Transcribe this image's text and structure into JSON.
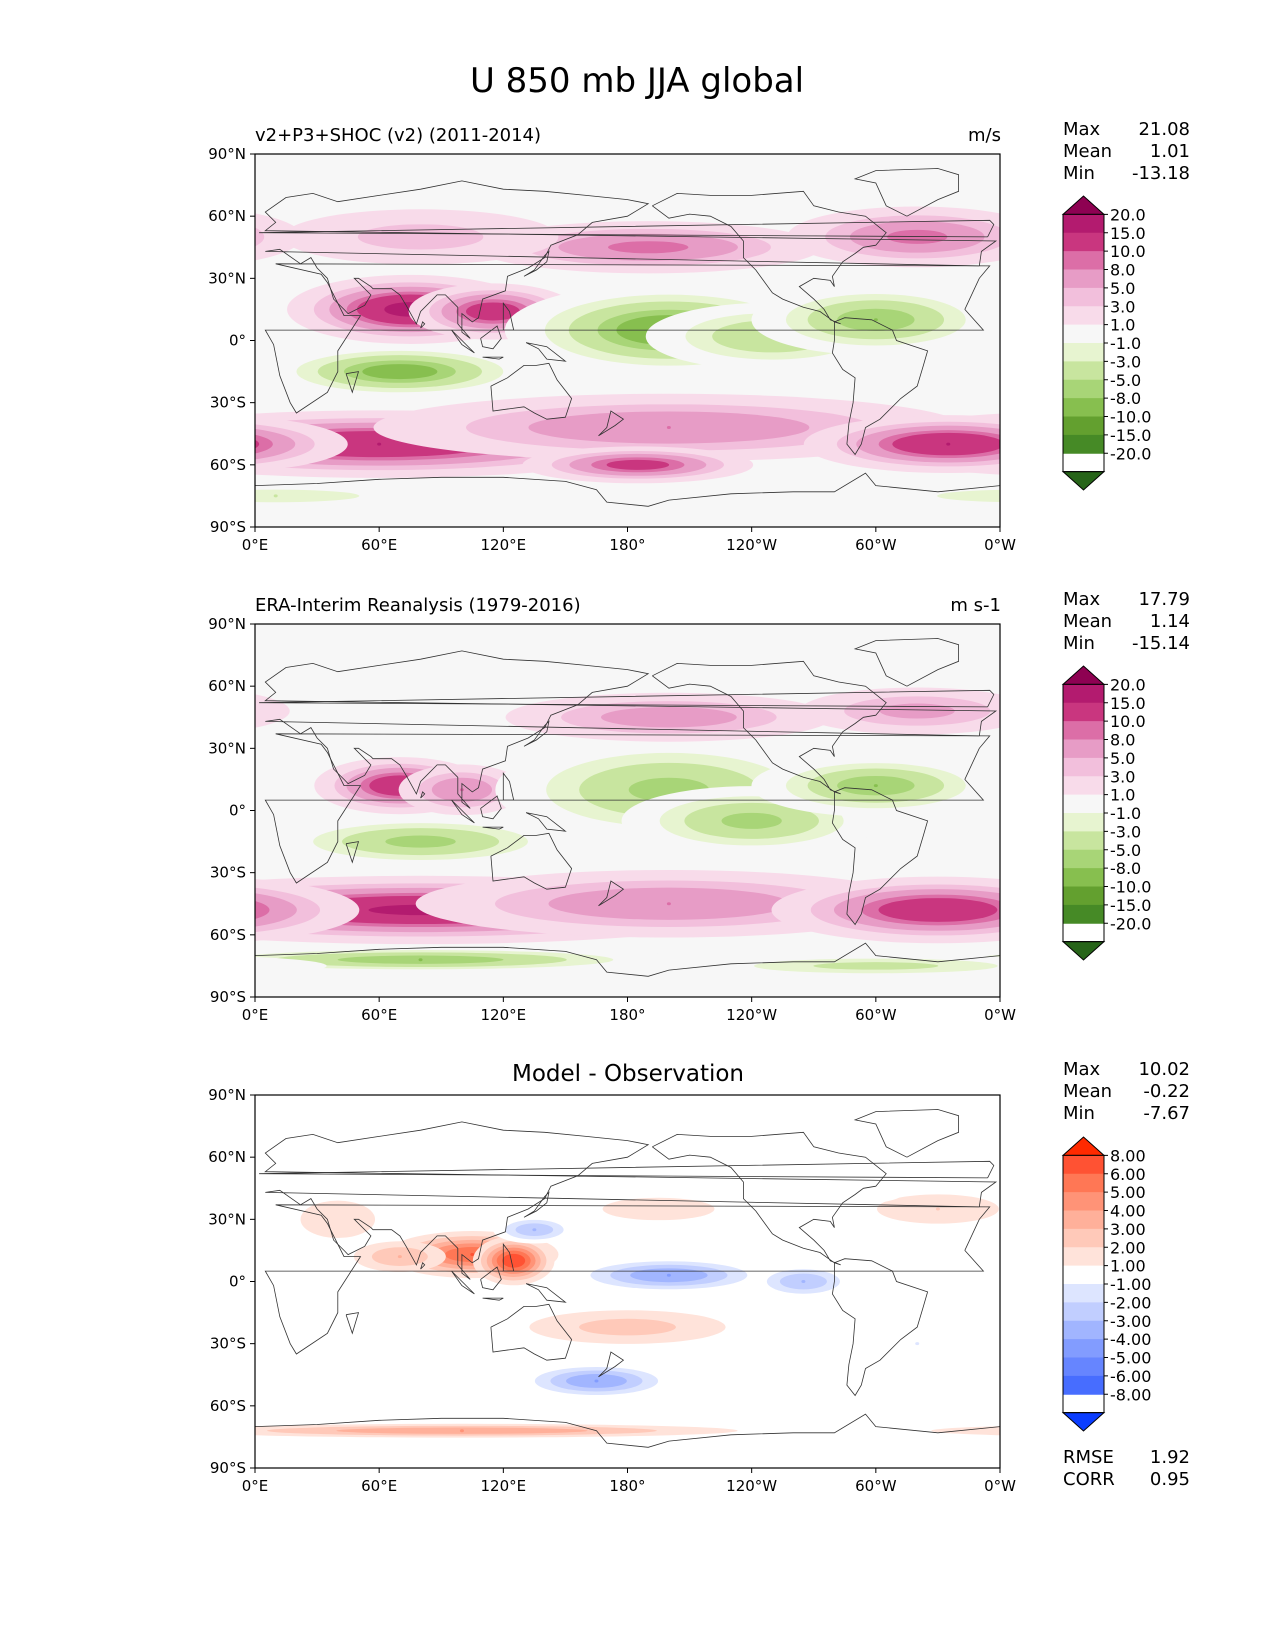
{
  "title": "U 850 mb JJA global",
  "chart_data": [
    {
      "type": "heatmap",
      "panel": "test",
      "title": "v2+P3+SHOC (v2) (2011-2014)",
      "units": "m/s",
      "stats": [
        {
          "label": "Max",
          "value": "21.08"
        },
        {
          "label": "Mean",
          "value": "1.01"
        },
        {
          "label": "Min",
          "value": "-13.18"
        }
      ],
      "x_ticks": [
        "0°E",
        "60°E",
        "120°E",
        "180°",
        "120°W",
        "60°W",
        "0°W"
      ],
      "y_ticks": [
        "90°N",
        "60°N",
        "30°N",
        "0°",
        "30°S",
        "60°S",
        "90°S"
      ],
      "xlim": [
        0,
        360
      ],
      "ylim": [
        -90,
        90
      ],
      "colorbar": {
        "labels": [
          "20.0",
          "15.0",
          "10.0",
          "8.0",
          "5.0",
          "3.0",
          "1.0",
          "-1.0",
          "-3.0",
          "-5.0",
          "-8.0",
          "-10.0",
          "-15.0",
          "-20.0"
        ],
        "colors": [
          "#8e0152",
          "#b31b6f",
          "#c9367f",
          "#dc6ea7",
          "#e79cc6",
          "#f2bfdc",
          "#f8dbea",
          "#f7f7f7",
          "#e7f4d0",
          "#c8e59f",
          "#a8d577",
          "#87bf4f",
          "#63a02f",
          "#468a26",
          "#276419"
        ]
      },
      "features": [
        {
          "lon": 75,
          "lat": 15,
          "value": 17,
          "sx": 25,
          "sy": 7
        },
        {
          "lon": 115,
          "lat": 14,
          "value": 13,
          "sx": 18,
          "sy": 6
        },
        {
          "lon": 70,
          "lat": -15,
          "value": -12,
          "sx": 30,
          "sy": 6
        },
        {
          "lon": 200,
          "lat": 5,
          "value": -13,
          "sx": 35,
          "sy": 10
        },
        {
          "lon": 250,
          "lat": 2,
          "value": -8,
          "sx": 30,
          "sy": 8
        },
        {
          "lon": 300,
          "lat": 10,
          "value": -10,
          "sx": 28,
          "sy": 8
        },
        {
          "lon": 60,
          "lat": -50,
          "value": 15,
          "sx": 60,
          "sy": 7
        },
        {
          "lon": 200,
          "lat": -42,
          "value": 8,
          "sx": 70,
          "sy": 8
        },
        {
          "lon": 185,
          "lat": -60,
          "value": 12,
          "sx": 25,
          "sy": 4
        },
        {
          "lon": 335,
          "lat": -50,
          "value": 15,
          "sx": 30,
          "sy": 6
        },
        {
          "lon": 190,
          "lat": 45,
          "value": 9,
          "sx": 40,
          "sy": 6
        },
        {
          "lon": 320,
          "lat": 50,
          "value": 9,
          "sx": 30,
          "sy": 7
        },
        {
          "lon": 80,
          "lat": 50,
          "value": 4,
          "sx": 40,
          "sy": 8
        },
        {
          "lon": 10,
          "lat": -75,
          "value": -5,
          "sx": 40,
          "sy": 3
        }
      ]
    },
    {
      "type": "heatmap",
      "panel": "reference",
      "title": "ERA-Interim Reanalysis (1979-2016)",
      "units": "m s-1",
      "stats": [
        {
          "label": "Max",
          "value": "17.79"
        },
        {
          "label": "Mean",
          "value": "1.14"
        },
        {
          "label": "Min",
          "value": "-15.14"
        }
      ],
      "x_ticks": [
        "0°E",
        "60°E",
        "120°E",
        "180°",
        "120°W",
        "60°W",
        "0°W"
      ],
      "y_ticks": [
        "90°N",
        "60°N",
        "30°N",
        "0°",
        "30°S",
        "60°S",
        "90°S"
      ],
      "xlim": [
        0,
        360
      ],
      "ylim": [
        -90,
        90
      ],
      "colorbar": {
        "labels": [
          "20.0",
          "15.0",
          "10.0",
          "8.0",
          "5.0",
          "3.0",
          "1.0",
          "-1.0",
          "-3.0",
          "-5.0",
          "-8.0",
          "-10.0",
          "-15.0",
          "-20.0"
        ],
        "colors": [
          "#8e0152",
          "#b31b6f",
          "#c9367f",
          "#dc6ea7",
          "#e79cc6",
          "#f2bfdc",
          "#f8dbea",
          "#f7f7f7",
          "#e7f4d0",
          "#c8e59f",
          "#a8d577",
          "#87bf4f",
          "#63a02f",
          "#468a26",
          "#276419"
        ]
      },
      "features": [
        {
          "lon": 70,
          "lat": 12,
          "value": 14,
          "sx": 18,
          "sy": 6
        },
        {
          "lon": 100,
          "lat": 10,
          "value": 8,
          "sx": 15,
          "sy": 6
        },
        {
          "lon": 80,
          "lat": -15,
          "value": -9,
          "sx": 35,
          "sy": 6
        },
        {
          "lon": 200,
          "lat": 10,
          "value": -9,
          "sx": 40,
          "sy": 12
        },
        {
          "lon": 240,
          "lat": -5,
          "value": -9,
          "sx": 30,
          "sy": 8
        },
        {
          "lon": 300,
          "lat": 12,
          "value": -10,
          "sx": 28,
          "sy": 7
        },
        {
          "lon": 80,
          "lat": -48,
          "value": 16,
          "sx": 70,
          "sy": 7
        },
        {
          "lon": 200,
          "lat": -45,
          "value": 8,
          "sx": 60,
          "sy": 8
        },
        {
          "lon": 330,
          "lat": -48,
          "value": 14,
          "sx": 35,
          "sy": 7
        },
        {
          "lon": 200,
          "lat": 45,
          "value": 7,
          "sx": 40,
          "sy": 6
        },
        {
          "lon": 320,
          "lat": 48,
          "value": 6,
          "sx": 30,
          "sy": 6
        },
        {
          "lon": 80,
          "lat": -72,
          "value": -10,
          "sx": 60,
          "sy": 3
        },
        {
          "lon": 300,
          "lat": -75,
          "value": -6,
          "sx": 50,
          "sy": 3
        }
      ]
    },
    {
      "type": "heatmap",
      "panel": "difference",
      "title": "Model - Observation",
      "stats": [
        {
          "label": "Max",
          "value": "10.02"
        },
        {
          "label": "Mean",
          "value": "-0.22"
        },
        {
          "label": "Min",
          "value": "-7.67"
        }
      ],
      "metrics": [
        {
          "label": "RMSE",
          "value": "1.92"
        },
        {
          "label": "CORR",
          "value": "0.95"
        }
      ],
      "x_ticks": [
        "0°E",
        "60°E",
        "120°E",
        "180°",
        "120°W",
        "60°W",
        "0°W"
      ],
      "y_ticks": [
        "90°N",
        "60°N",
        "30°N",
        "0°",
        "30°S",
        "60°S",
        "90°S"
      ],
      "xlim": [
        0,
        360
      ],
      "ylim": [
        -90,
        90
      ],
      "colorbar": {
        "labels": [
          "8.00",
          "6.00",
          "5.00",
          "4.00",
          "3.00",
          "2.00",
          "1.00",
          "-1.00",
          "-2.00",
          "-3.00",
          "-4.00",
          "-5.00",
          "-6.00",
          "-8.00"
        ],
        "colors": [
          "#ff2a00",
          "#ff5233",
          "#ff7755",
          "#ff9377",
          "#ffb09a",
          "#ffc9b9",
          "#ffe3da",
          "#ffffff",
          "#dde5ff",
          "#c1ceff",
          "#a1b5ff",
          "#829cff",
          "#6685ff",
          "#476dff",
          "#0a3dff"
        ]
      },
      "features": [
        {
          "lon": 105,
          "lat": 13,
          "value": 6,
          "sx": 22,
          "sy": 6
        },
        {
          "lon": 125,
          "lat": 10,
          "value": 7,
          "sx": 10,
          "sy": 6
        },
        {
          "lon": 70,
          "lat": 12,
          "value": 3,
          "sx": 15,
          "sy": 5
        },
        {
          "lon": 135,
          "lat": 25,
          "value": -4,
          "sx": 12,
          "sy": 4
        },
        {
          "lon": 200,
          "lat": 3,
          "value": -5,
          "sx": 28,
          "sy": 5
        },
        {
          "lon": 265,
          "lat": 0,
          "value": -4,
          "sx": 15,
          "sy": 5
        },
        {
          "lon": 165,
          "lat": -48,
          "value": -5,
          "sx": 22,
          "sy": 5
        },
        {
          "lon": 180,
          "lat": -22,
          "value": 2.5,
          "sx": 35,
          "sy": 6
        },
        {
          "lon": 195,
          "lat": 35,
          "value": 1.5,
          "sx": 30,
          "sy": 6
        },
        {
          "lon": 330,
          "lat": 35,
          "value": 2,
          "sx": 25,
          "sy": 6
        },
        {
          "lon": 290,
          "lat": 42,
          "value": -1.5,
          "sx": 25,
          "sy": 5
        },
        {
          "lon": 320,
          "lat": -30,
          "value": -2,
          "sx": 15,
          "sy": 5
        },
        {
          "lon": 90,
          "lat": 70,
          "value": -1.5,
          "sx": 60,
          "sy": 6
        },
        {
          "lon": 100,
          "lat": -72,
          "value": 4,
          "sx": 80,
          "sy": 2
        },
        {
          "lon": 60,
          "lat": -15,
          "value": -1.5,
          "sx": 25,
          "sy": 5
        },
        {
          "lon": 40,
          "lat": 30,
          "value": 1.5,
          "sx": 20,
          "sy": 10
        }
      ]
    }
  ]
}
